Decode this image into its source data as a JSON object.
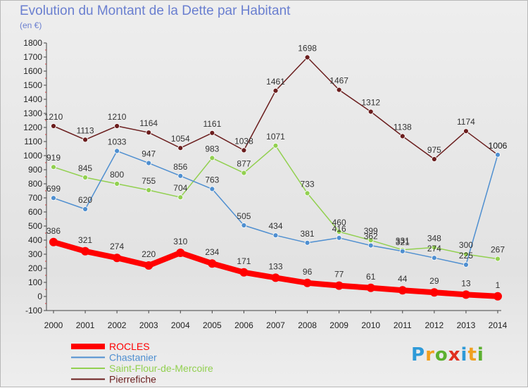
{
  "header": {
    "title": "Evolution du Montant de la Dette par Habitant",
    "subtitle": "(en €)"
  },
  "logo": {
    "letters": [
      "P",
      "r",
      "o",
      "x",
      "i",
      "t",
      "i"
    ],
    "colors": [
      "#2e9ad8",
      "#f0a020",
      "#5cb030",
      "#e03020",
      "#2e9ad8",
      "#f0a020",
      "#5cb030"
    ]
  },
  "chart_data": {
    "type": "line",
    "x": [
      "2000",
      "2001",
      "2002",
      "2003",
      "2004",
      "2005",
      "2006",
      "2007",
      "2008",
      "2009",
      "2010",
      "2011",
      "2012",
      "2013",
      "2014"
    ],
    "ylim": [
      -100,
      1800
    ],
    "yticks": [
      "-100",
      "0",
      "100",
      "200",
      "300",
      "400",
      "500",
      "600",
      "700",
      "800",
      "900",
      "1000",
      "1100",
      "1200",
      "1300",
      "1400",
      "1500",
      "1600",
      "1700",
      "1800"
    ],
    "grid": false,
    "legend_position": "bottom-left",
    "series": [
      {
        "name": "Pierrefiche",
        "color": "#6b1e1e",
        "values": [
          1210,
          1113,
          1210,
          1164,
          1054,
          1161,
          1038,
          1461,
          1698,
          1467,
          1312,
          1138,
          975,
          1174,
          1006
        ]
      },
      {
        "name": "Saint-Flour-de-Mercoire",
        "color": "#92d050",
        "values": [
          919,
          845,
          800,
          755,
          704,
          983,
          877,
          1071,
          733,
          460,
          399,
          331,
          348,
          300,
          267
        ]
      },
      {
        "name": "Chastanier",
        "color": "#4f8fd0",
        "values": [
          699,
          620,
          1033,
          947,
          856,
          763,
          505,
          434,
          381,
          416,
          362,
          321,
          274,
          225,
          1006
        ]
      },
      {
        "name": "ROCLES",
        "color": "#ff0000",
        "values": [
          386,
          321,
          274,
          220,
          310,
          234,
          171,
          133,
          96,
          77,
          61,
          44,
          29,
          13,
          1
        ]
      }
    ],
    "legend_order": [
      "ROCLES",
      "Chastanier",
      "Saint-Flour-de-Mercoire",
      "Pierrefiche"
    ]
  }
}
